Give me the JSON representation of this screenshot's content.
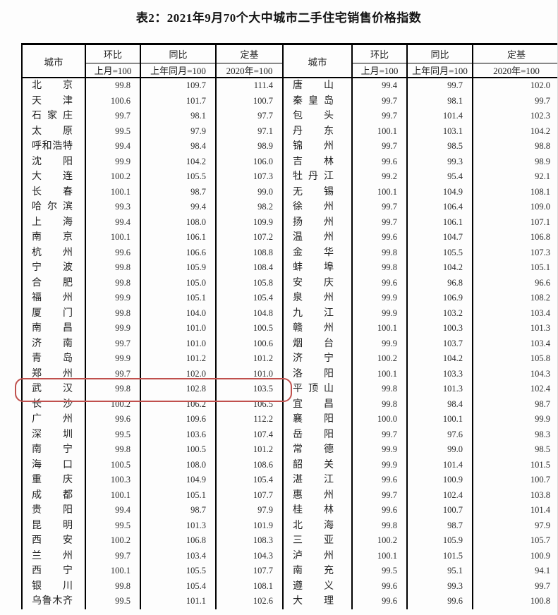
{
  "title": "表2：2021年9月70个大中城市二手住宅销售价格指数",
  "table": {
    "header": {
      "city": "城市",
      "mom": "环比",
      "mom_base": "上月=100",
      "yoy": "同比",
      "yoy_base": "上年同月=100",
      "fixed": "定基",
      "fixed_base": "2020年=100"
    },
    "highlight": {
      "panel": 0,
      "row": 20,
      "city": "武汉",
      "color": "#c0504d"
    },
    "panels": [
      {
        "rows": [
          [
            "北京",
            "99.8",
            "109.7",
            "111.4"
          ],
          [
            "天津",
            "100.6",
            "101.7",
            "100.7"
          ],
          [
            "石家庄",
            "99.7",
            "98.1",
            "97.7"
          ],
          [
            "太原",
            "99.5",
            "97.9",
            "97.1"
          ],
          [
            "呼和浩特",
            "99.4",
            "98.4",
            "98.9"
          ],
          [
            "沈阳",
            "99.9",
            "104.2",
            "106.0"
          ],
          [
            "大连",
            "100.2",
            "105.5",
            "107.3"
          ],
          [
            "长春",
            "100.1",
            "98.7",
            "99.0"
          ],
          [
            "哈尔滨",
            "99.3",
            "99.4",
            "98.2"
          ],
          [
            "上海",
            "99.4",
            "108.0",
            "109.9"
          ],
          [
            "南京",
            "100.1",
            "106.1",
            "107.2"
          ],
          [
            "杭州",
            "99.6",
            "106.6",
            "108.8"
          ],
          [
            "宁波",
            "99.8",
            "105.9",
            "108.4"
          ],
          [
            "合肥",
            "99.8",
            "105.0",
            "105.8"
          ],
          [
            "福州",
            "99.9",
            "105.1",
            "105.4"
          ],
          [
            "厦门",
            "99.8",
            "104.0",
            "104.8"
          ],
          [
            "南昌",
            "99.9",
            "101.0",
            "100.5"
          ],
          [
            "济南",
            "99.7",
            "101.0",
            "100.6"
          ],
          [
            "青岛",
            "99.9",
            "101.2",
            "101.2"
          ],
          [
            "郑州",
            "99.7",
            "102.0",
            "101.0"
          ],
          [
            "武汉",
            "99.8",
            "102.8",
            "103.5"
          ],
          [
            "长沙",
            "100.2",
            "106.2",
            "106.5"
          ],
          [
            "广州",
            "99.6",
            "109.6",
            "112.2"
          ],
          [
            "深圳",
            "99.5",
            "103.6",
            "107.4"
          ],
          [
            "南宁",
            "99.8",
            "100.5",
            "101.2"
          ],
          [
            "海口",
            "100.5",
            "108.0",
            "108.6"
          ],
          [
            "重庆",
            "100.3",
            "104.9",
            "105.4"
          ],
          [
            "成都",
            "100.1",
            "105.1",
            "107.7"
          ],
          [
            "贵阳",
            "99.4",
            "98.7",
            "97.9"
          ],
          [
            "昆明",
            "99.5",
            "101.3",
            "101.9"
          ],
          [
            "西安",
            "100.2",
            "106.8",
            "108.3"
          ],
          [
            "兰州",
            "99.7",
            "103.4",
            "104.3"
          ],
          [
            "西宁",
            "100.1",
            "105.5",
            "107.7"
          ],
          [
            "银川",
            "99.8",
            "105.4",
            "108.1"
          ],
          [
            "乌鲁木齐",
            "99.5",
            "101.1",
            "102.6"
          ]
        ]
      },
      {
        "rows": [
          [
            "唐山",
            "99.4",
            "99.7",
            "102.0"
          ],
          [
            "秦皇岛",
            "99.7",
            "98.1",
            "99.7"
          ],
          [
            "包头",
            "99.7",
            "101.4",
            "102.3"
          ],
          [
            "丹东",
            "100.1",
            "103.1",
            "104.2"
          ],
          [
            "锦州",
            "99.7",
            "98.5",
            "98.8"
          ],
          [
            "吉林",
            "99.6",
            "99.3",
            "98.9"
          ],
          [
            "牡丹江",
            "99.2",
            "95.4",
            "92.1"
          ],
          [
            "无锡",
            "100.1",
            "104.9",
            "108.1"
          ],
          [
            "徐州",
            "99.7",
            "106.4",
            "109.0"
          ],
          [
            "扬州",
            "99.7",
            "106.1",
            "107.1"
          ],
          [
            "温州",
            "99.6",
            "104.7",
            "106.8"
          ],
          [
            "金华",
            "99.8",
            "105.5",
            "107.3"
          ],
          [
            "蚌埠",
            "99.8",
            "104.2",
            "105.1"
          ],
          [
            "安庆",
            "99.6",
            "96.8",
            "96.6"
          ],
          [
            "泉州",
            "99.9",
            "106.9",
            "108.2"
          ],
          [
            "九江",
            "99.9",
            "103.2",
            "103.4"
          ],
          [
            "赣州",
            "100.1",
            "100.3",
            "101.3"
          ],
          [
            "烟台",
            "99.9",
            "103.7",
            "103.4"
          ],
          [
            "济宁",
            "100.2",
            "104.2",
            "105.8"
          ],
          [
            "洛阳",
            "100.1",
            "103.3",
            "104.3"
          ],
          [
            "平顶山",
            "99.8",
            "101.3",
            "102.4"
          ],
          [
            "宜昌",
            "99.8",
            "98.4",
            "98.7"
          ],
          [
            "襄阳",
            "100.0",
            "100.1",
            "99.9"
          ],
          [
            "岳阳",
            "99.7",
            "97.6",
            "98.3"
          ],
          [
            "常德",
            "99.9",
            "99.0",
            "98.5"
          ],
          [
            "韶关",
            "99.9",
            "101.4",
            "101.5"
          ],
          [
            "湛江",
            "99.6",
            "100.9",
            "100.7"
          ],
          [
            "惠州",
            "99.7",
            "102.4",
            "103.8"
          ],
          [
            "桂林",
            "99.6",
            "100.7",
            "101.4"
          ],
          [
            "北海",
            "99.8",
            "98.7",
            "97.9"
          ],
          [
            "三亚",
            "100.2",
            "105.9",
            "105.7"
          ],
          [
            "泸州",
            "100.1",
            "101.5",
            "100.9"
          ],
          [
            "南充",
            "99.5",
            "95.1",
            "94.1"
          ],
          [
            "遵义",
            "99.6",
            "99.3",
            "99.7"
          ],
          [
            "大理",
            "99.6",
            "99.6",
            "100.8"
          ]
        ]
      }
    ]
  }
}
